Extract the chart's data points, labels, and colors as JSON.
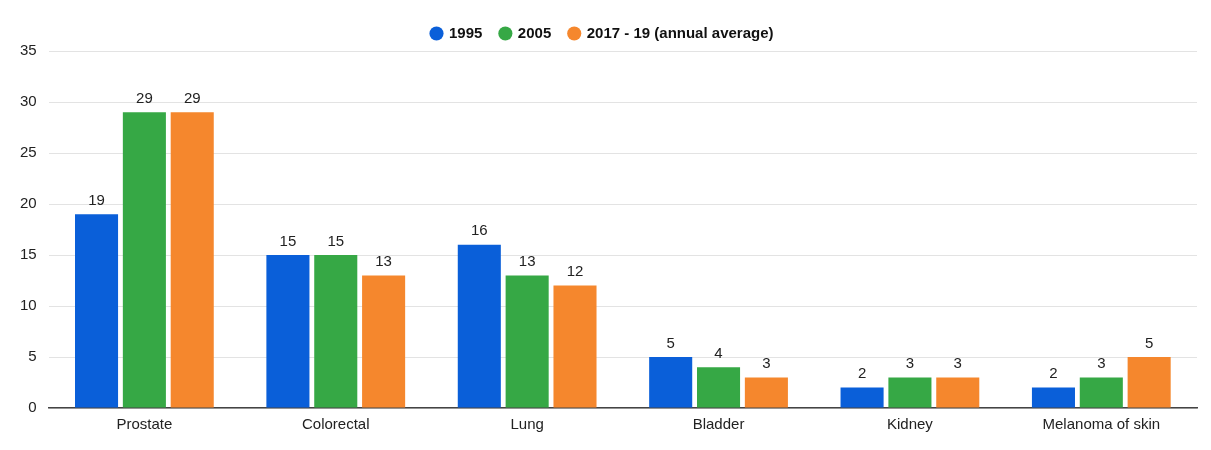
{
  "chart_data": {
    "type": "bar",
    "categories": [
      "Prostate",
      "Colorectal",
      "Lung",
      "Bladder",
      "Kidney",
      "Melanoma of skin"
    ],
    "series": [
      {
        "name": "1995",
        "color": "#0a5fd9",
        "values": [
          19,
          15,
          16,
          5,
          2,
          2
        ]
      },
      {
        "name": "2005",
        "color": "#36a845",
        "values": [
          29,
          15,
          13,
          4,
          3,
          3
        ]
      },
      {
        "name": "2017 - 19 (annual average)",
        "color": "#f5872d",
        "values": [
          29,
          13,
          12,
          3,
          3,
          5
        ]
      }
    ],
    "ylim": [
      0,
      35
    ],
    "yticks": [
      0,
      5,
      10,
      15,
      20,
      25,
      30,
      35
    ],
    "grid": "y",
    "legend": "top",
    "data_labels": true
  }
}
